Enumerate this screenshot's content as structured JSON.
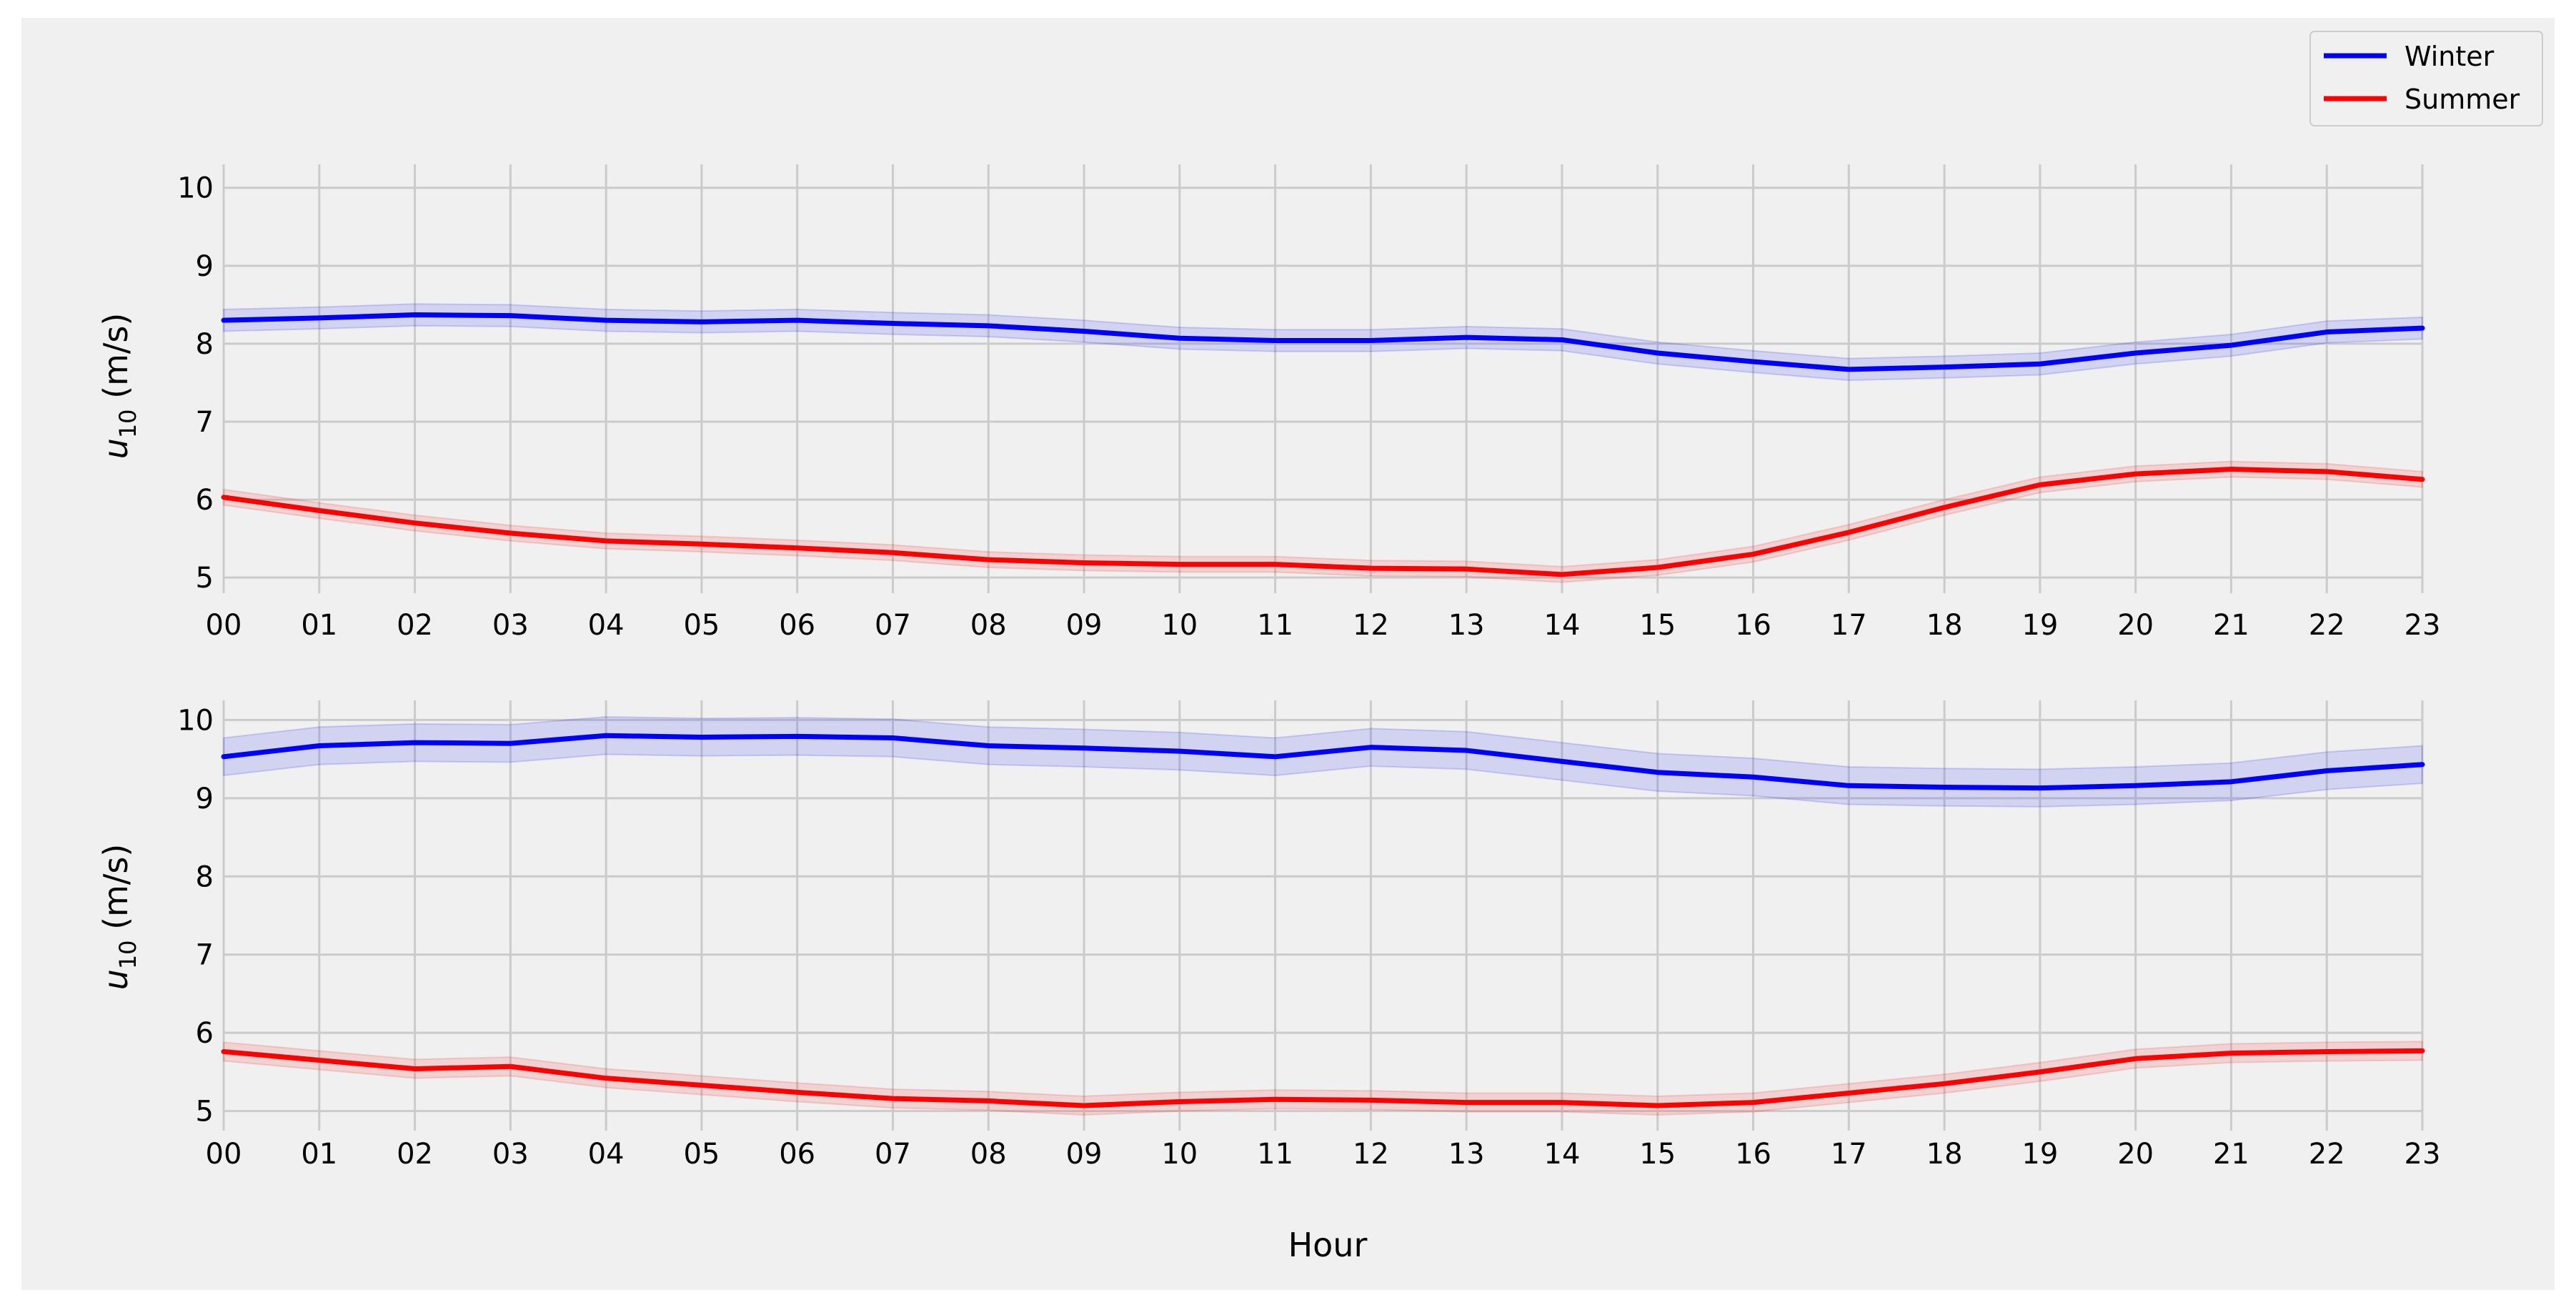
{
  "figure": {
    "xlabel": "Hour",
    "ylabel_main": "u",
    "ylabel_sub": "10",
    "ylabel_unit": " (m/s)"
  },
  "colors": {
    "background": "#f0f0f0",
    "grid": "#cbcbcb",
    "winter": "#0000ff",
    "summer": "#ff0000"
  },
  "legend": {
    "placement": "top-right",
    "items": [
      {
        "label": "Winter",
        "color": "#0000ff"
      },
      {
        "label": "Summer",
        "color": "#ff0000"
      }
    ]
  },
  "chart_data": [
    {
      "type": "line",
      "panel": "top",
      "x": [
        "00",
        "01",
        "02",
        "03",
        "04",
        "05",
        "06",
        "07",
        "08",
        "09",
        "10",
        "11",
        "12",
        "13",
        "14",
        "15",
        "16",
        "17",
        "18",
        "19",
        "20",
        "21",
        "22",
        "23"
      ],
      "xlabel": "",
      "ylabel": "u10 (m/s)",
      "ylim": [
        4.8,
        10.3
      ],
      "yticks": [
        5,
        6,
        7,
        8,
        9,
        10
      ],
      "grid": true,
      "series": [
        {
          "name": "Winter",
          "color": "#0000ff",
          "values": [
            8.3,
            8.33,
            8.37,
            8.36,
            8.3,
            8.28,
            8.3,
            8.26,
            8.23,
            8.16,
            8.07,
            8.04,
            8.04,
            8.08,
            8.05,
            7.88,
            7.77,
            7.67,
            7.7,
            7.74,
            7.88,
            7.98,
            8.15,
            8.2
          ],
          "band_halfwidth": 0.14
        },
        {
          "name": "Summer",
          "color": "#ff0000",
          "values": [
            6.03,
            5.86,
            5.7,
            5.57,
            5.47,
            5.43,
            5.38,
            5.32,
            5.23,
            5.19,
            5.17,
            5.17,
            5.12,
            5.11,
            5.04,
            5.13,
            5.3,
            5.58,
            5.9,
            6.19,
            6.33,
            6.39,
            6.36,
            6.26
          ],
          "band_halfwidth": 0.1
        }
      ]
    },
    {
      "type": "line",
      "panel": "bottom",
      "x": [
        "00",
        "01",
        "02",
        "03",
        "04",
        "05",
        "06",
        "07",
        "08",
        "09",
        "10",
        "11",
        "12",
        "13",
        "14",
        "15",
        "16",
        "17",
        "18",
        "19",
        "20",
        "21",
        "22",
        "23"
      ],
      "xlabel": "Hour",
      "ylabel": "u10 (m/s)",
      "ylim": [
        4.75,
        10.25
      ],
      "yticks": [
        5,
        6,
        7,
        8,
        9,
        10
      ],
      "grid": true,
      "series": [
        {
          "name": "Winter",
          "color": "#0000ff",
          "values": [
            9.53,
            9.67,
            9.71,
            9.7,
            9.8,
            9.78,
            9.79,
            9.77,
            9.67,
            9.64,
            9.6,
            9.53,
            9.65,
            9.61,
            9.47,
            9.33,
            9.27,
            9.16,
            9.14,
            9.13,
            9.16,
            9.21,
            9.35,
            9.43
          ],
          "band_halfwidth": 0.24
        },
        {
          "name": "Summer",
          "color": "#ff0000",
          "values": [
            5.76,
            5.65,
            5.54,
            5.57,
            5.42,
            5.33,
            5.24,
            5.16,
            5.13,
            5.07,
            5.12,
            5.15,
            5.14,
            5.11,
            5.11,
            5.07,
            5.11,
            5.23,
            5.35,
            5.5,
            5.67,
            5.74,
            5.76,
            5.77
          ],
          "band_halfwidth": 0.12
        }
      ]
    }
  ]
}
